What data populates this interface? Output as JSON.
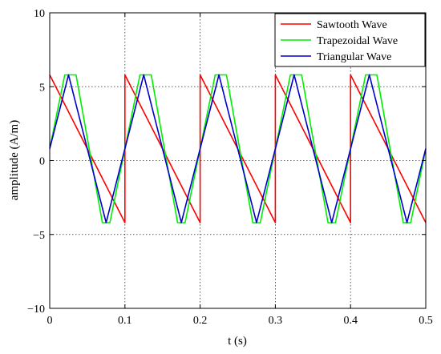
{
  "chart_data": {
    "type": "line",
    "xlabel": "t (s)",
    "ylabel": "amplitude (A/m)",
    "xlim": [
      0,
      0.5
    ],
    "ylim": [
      -10,
      10
    ],
    "xticks": [
      0,
      0.1,
      0.2,
      0.3,
      0.4,
      0.5
    ],
    "yticks": [
      -10,
      -5,
      0,
      5,
      10
    ],
    "xtick_labels": [
      "0",
      "0.1",
      "0.2",
      "0.3",
      "0.4",
      "0.5"
    ],
    "ytick_labels": [
      "−10",
      "−5",
      "0",
      "5",
      "10"
    ],
    "grid": true,
    "legend_position": "top-right",
    "series": [
      {
        "name": "Sawtooth Wave",
        "color": "#ff0000",
        "x": [
          0,
          0.1,
          0.1,
          0.2,
          0.2,
          0.3,
          0.3,
          0.4,
          0.4,
          0.5
        ],
        "y": [
          5.8,
          -4.2,
          5.8,
          -4.2,
          5.8,
          -4.2,
          5.8,
          -4.2,
          5.8,
          -4.2
        ]
      },
      {
        "name": "Trapezoidal Wave",
        "color": "#00ee00",
        "x": [
          0,
          0.02,
          0.035,
          0.07,
          0.08,
          0.12,
          0.135,
          0.17,
          0.18,
          0.22,
          0.235,
          0.27,
          0.28,
          0.32,
          0.335,
          0.37,
          0.38,
          0.42,
          0.435,
          0.47,
          0.48,
          0.5
        ],
        "y": [
          0.8,
          5.8,
          5.8,
          -4.2,
          -4.2,
          5.8,
          5.8,
          -4.2,
          -4.2,
          5.8,
          5.8,
          -4.2,
          -4.2,
          5.8,
          5.8,
          -4.2,
          -4.2,
          5.8,
          5.8,
          -4.2,
          -4.2,
          0.8
        ]
      },
      {
        "name": "Triangular Wave",
        "color": "#0000cc",
        "x": [
          0,
          0.025,
          0.075,
          0.125,
          0.175,
          0.225,
          0.275,
          0.325,
          0.375,
          0.425,
          0.475,
          0.5
        ],
        "y": [
          0.8,
          5.8,
          -4.2,
          5.8,
          -4.2,
          5.8,
          -4.2,
          5.8,
          -4.2,
          5.8,
          -4.2,
          0.8
        ]
      }
    ]
  }
}
